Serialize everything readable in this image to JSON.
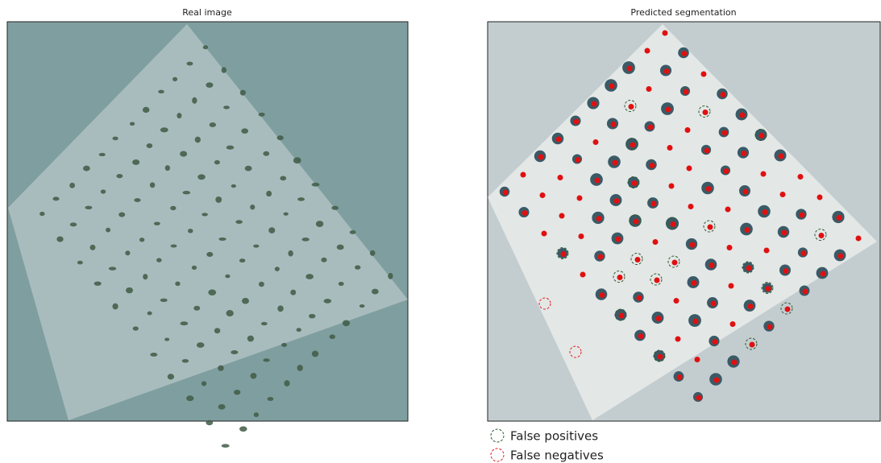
{
  "panels": [
    {
      "title": "Real image"
    },
    {
      "title": "Predicted segmentation"
    }
  ],
  "legend": [
    {
      "label": "False positives"
    },
    {
      "label": "False negatives"
    }
  ]
}
